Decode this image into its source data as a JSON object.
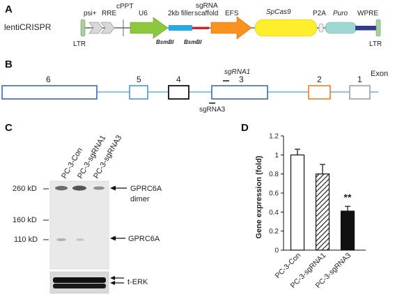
{
  "panels": {
    "a": {
      "letter": "A",
      "construct_name": "lentiCRISPR",
      "elements": [
        {
          "label": "LTR",
          "color": "#a8cf9c"
        },
        {
          "label": "psi+",
          "color": "#d9d9d9"
        },
        {
          "label": "RRE",
          "color": "#d9d9d9"
        },
        {
          "label": "cPPT",
          "color": "#666666"
        },
        {
          "label": "U6",
          "color": "#8dc63f"
        },
        {
          "label": "2kb filler",
          "color": "#29abe2"
        },
        {
          "label": "sgRNA scaffold",
          "color": "#c1272d"
        },
        {
          "label": "EFS",
          "color": "#f7931e"
        },
        {
          "label": "SpCas9",
          "color": "#ffee2e"
        },
        {
          "label": "P2A",
          "color": "#f0f0f0"
        },
        {
          "label": "Puro",
          "color": "#9fd8d2"
        },
        {
          "label": "WPRE",
          "color": "#2e3d8f"
        },
        {
          "label": "LTR",
          "color": "#a8cf9c"
        }
      ],
      "scaffold_line1": "sgRNA",
      "scaffold_line2": "scaffold",
      "enzyme_1": "BsmBI",
      "enzyme_2": "BsmBI"
    },
    "b": {
      "letter": "B",
      "exon_heading": "Exon",
      "exons": [
        {
          "number": "6",
          "color": "#2e5fa8"
        },
        {
          "number": "5",
          "color": "#3f8fd0"
        },
        {
          "number": "4",
          "color": "#111111"
        },
        {
          "number": "3",
          "color": "#2e5fa8"
        },
        {
          "number": "2",
          "color": "#f07b2a"
        },
        {
          "number": "1",
          "color": "#a0a0a0"
        }
      ],
      "intron_color": "#4a9fdc",
      "guides": [
        "sgRNA1",
        "sgRNA3"
      ]
    },
    "c": {
      "letter": "C",
      "lanes": [
        "PC-3-Con",
        "PC-3-sgRNA1",
        "PC-3-sgRNA3"
      ],
      "markers": [
        "260 kD",
        "160 kD",
        "110 kD"
      ],
      "band_label_1": "GPRC6A",
      "band_label_1b": "dimer",
      "band_label_2": "GPRC6A",
      "loading_label": "t-ERK"
    },
    "d": {
      "letter": "D"
    }
  },
  "chart_data": {
    "type": "bar",
    "categories": [
      "PC-3-Con",
      "PC-3-sgRNA1",
      "PC-3-sgRNA3"
    ],
    "values": [
      1.0,
      0.8,
      0.41
    ],
    "errors": [
      0.06,
      0.1,
      0.05
    ],
    "bar_styles": [
      "open",
      "hatched",
      "filled"
    ],
    "ylabel": "Gene expression (fold)",
    "ylim": [
      0,
      1.2
    ],
    "yticks": [
      "0",
      "0.2",
      "0.4",
      "0.6",
      "0.8",
      "1",
      "1.2"
    ],
    "significance": [
      {
        "category": "PC-3-sgRNA3",
        "label": "**"
      }
    ]
  }
}
